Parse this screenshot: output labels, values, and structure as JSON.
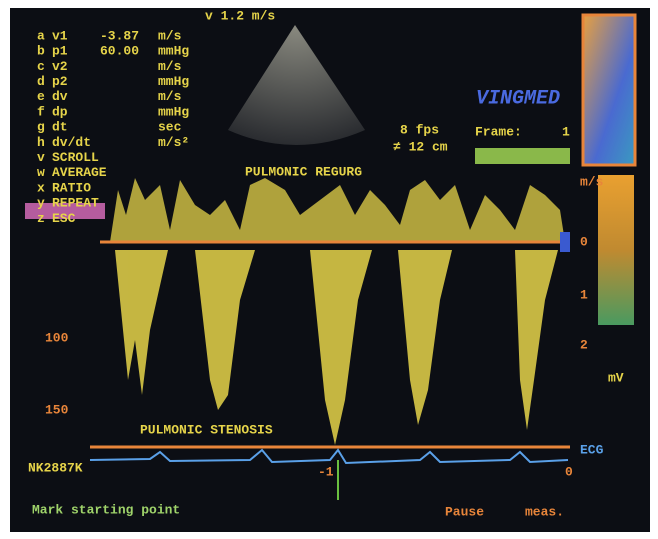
{
  "header": {
    "velocity_scale": "v 1.2 m/s",
    "frame_rate": "8 fps",
    "depth": "≠ 12 cm",
    "logo": "VINGMED",
    "frame_label": "Frame:",
    "frame_number": "1"
  },
  "menu": [
    {
      "key": "a",
      "label": "v1",
      "value": "-3.87",
      "unit": "m/s"
    },
    {
      "key": "b",
      "label": "p1",
      "value": "60.00",
      "unit": "mmHg"
    },
    {
      "key": "c",
      "label": "v2",
      "value": "",
      "unit": "m/s"
    },
    {
      "key": "d",
      "label": "p2",
      "value": "",
      "unit": "mmHg"
    },
    {
      "key": "e",
      "label": "dv",
      "value": "",
      "unit": "m/s"
    },
    {
      "key": "f",
      "label": "dp",
      "value": "",
      "unit": "mmHg"
    },
    {
      "key": "g",
      "label": "dt",
      "value": "",
      "unit": "sec"
    },
    {
      "key": "h",
      "label": "dv/dt",
      "value": "",
      "unit": "m/s²"
    },
    {
      "key": "v",
      "label": "SCROLL"
    },
    {
      "key": "w",
      "label": "AVERAGE"
    },
    {
      "key": "x",
      "label": "RATIO"
    },
    {
      "key": "y",
      "label": "REPEAT"
    },
    {
      "key": "z",
      "label": "ESC"
    }
  ],
  "annotations": {
    "upper": "PULMONIC REGURG",
    "lower": "PULMONIC STENOSIS"
  },
  "left_scale": [
    "100",
    "150"
  ],
  "right_scale": {
    "unit": "m/s",
    "zero": "0",
    "one": "1",
    "two": "2",
    "ecg_unit": "mV",
    "ecg": "ECG"
  },
  "time_axis": {
    "minus_one": "-1",
    "zero": "0"
  },
  "patient_id": "NK2887K",
  "footer": {
    "prompt": "Mark starting point",
    "pause": "Pause",
    "measure": "meas."
  }
}
